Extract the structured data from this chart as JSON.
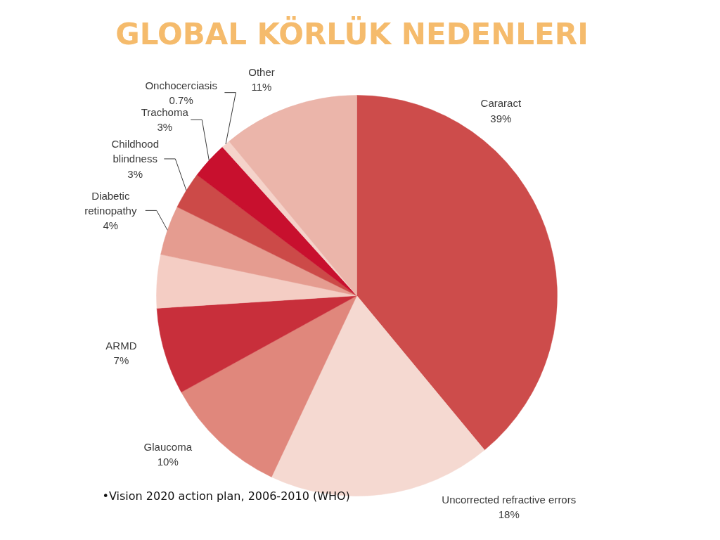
{
  "chart_data": {
    "type": "pie",
    "title": "GLOBAL KÖRLÜK NEDENLERI",
    "categories": [
      "Cararact",
      "Uncorrected refractive errors",
      "Glaucoma",
      "ARMD",
      null,
      "Diabetic retinopathy",
      "Childhood blindness",
      "Trachoma",
      "Onchocerciasis",
      "Other"
    ],
    "values": [
      39,
      18,
      10,
      7,
      4.3,
      4,
      3,
      3,
      0.7,
      11
    ],
    "colors": [
      "#cd4c4b",
      "#f5d9d1",
      "#e0877c",
      "#c82f3b",
      "#f4cdc4",
      "#e59c90",
      "#cc4a48",
      "#c8102e",
      "#f5d3ca",
      "#ebb5aa"
    ],
    "value_labels": [
      "39%",
      "18%",
      "10%",
      "7%",
      null,
      "4%",
      "3%",
      "3%",
      "0.7%",
      "11%"
    ],
    "annotations": [
      "•Vision 2020 action plan, 2006-2010 (WHO)"
    ]
  }
}
